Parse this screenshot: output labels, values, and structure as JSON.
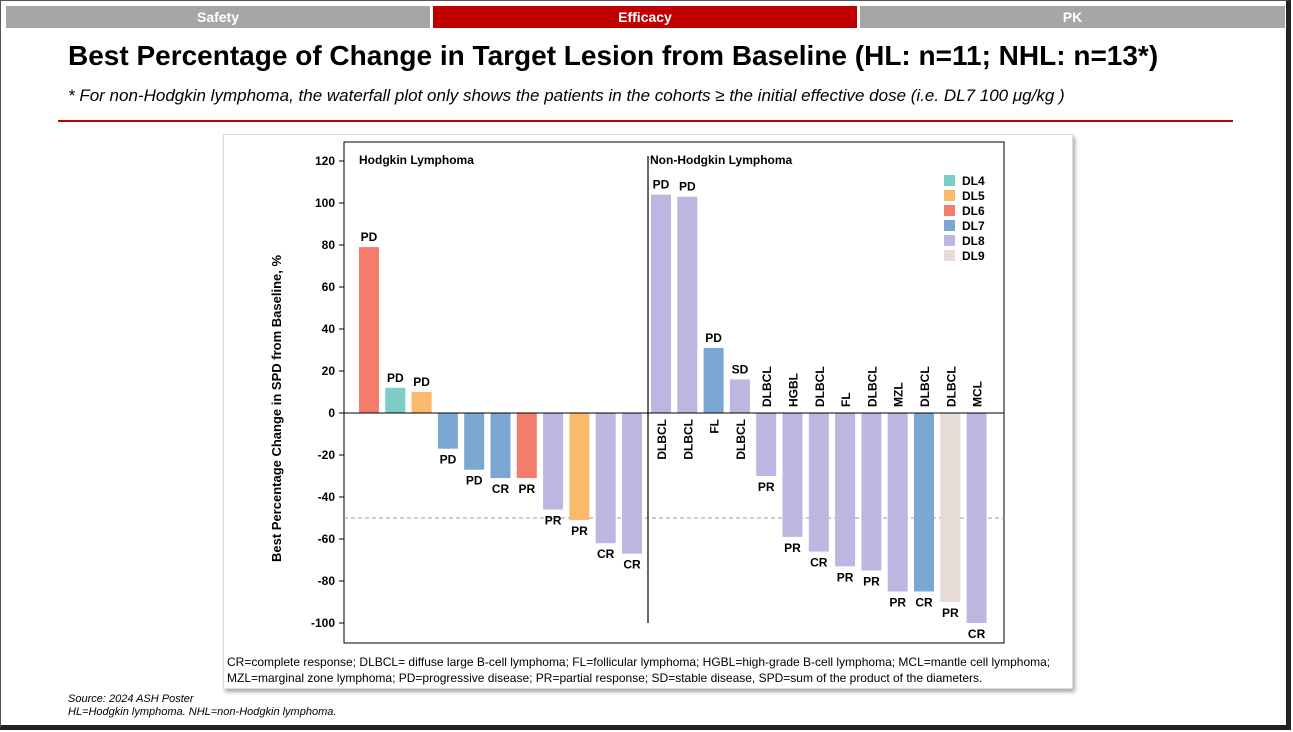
{
  "tabs": [
    {
      "label": "Safety",
      "active": false
    },
    {
      "label": "Efficacy",
      "active": true
    },
    {
      "label": "PK",
      "active": false
    }
  ],
  "title": "Best Percentage of Change in Target Lesion from Baseline (HL: n=11; NHL: n=13*)",
  "subtitle": "* For non-Hodgkin lymphoma, the waterfall plot only shows the patients in the cohorts ≥ the initial effective dose (i.e. DL7 100 μg/kg )",
  "footnote_lines": [
    "CR=complete response; DLBCL= diffuse large B-cell lymphoma; FL=follicular lymphoma; HGBL=high-grade B-cell lymphoma; MCL=mantle cell lymphoma;",
    "MZL=marginal zone lymphoma; PD=progressive disease; PR=partial response; SD=stable disease, SPD=sum of the product of the diameters."
  ],
  "source_lines": [
    "Source: 2024 ASH Poster",
    "HL=Hodgkin lymphoma. NHL=non-Hodgkin lymphoma."
  ],
  "colors": {
    "accent": "#c00000",
    "DL4": "#7ccdc6",
    "DL5": "#fbb96c",
    "DL6": "#f47c6c",
    "DL7": "#7aa8d2",
    "DL8": "#bcb6e0",
    "DL9": "#e8dcd6"
  },
  "chart_data": {
    "type": "bar",
    "ylabel": "Best Percentage Change in SPD from Baseline, %",
    "ylim": [
      -105,
      125
    ],
    "yticks": [
      120,
      100,
      80,
      60,
      40,
      20,
      0,
      -20,
      -40,
      -60,
      -80,
      -100
    ],
    "reference_line": -50,
    "legend": [
      "DL4",
      "DL5",
      "DL6",
      "DL7",
      "DL8",
      "DL9"
    ],
    "legend_position": "top-right",
    "groups": [
      {
        "name": "Hodgkin Lymphoma",
        "bars": [
          {
            "value": 79,
            "dose": "DL6",
            "response": "PD",
            "histology": ""
          },
          {
            "value": 12,
            "dose": "DL4",
            "response": "PD",
            "histology": ""
          },
          {
            "value": 10,
            "dose": "DL5",
            "response": "PD",
            "histology": ""
          },
          {
            "value": -17,
            "dose": "DL7",
            "response": "PD",
            "histology": ""
          },
          {
            "value": -27,
            "dose": "DL7",
            "response": "PD",
            "histology": ""
          },
          {
            "value": -31,
            "dose": "DL7",
            "response": "CR",
            "histology": ""
          },
          {
            "value": -31,
            "dose": "DL6",
            "response": "PR",
            "histology": ""
          },
          {
            "value": -46,
            "dose": "DL8",
            "response": "PR",
            "histology": ""
          },
          {
            "value": -51,
            "dose": "DL5",
            "response": "PR",
            "histology": ""
          },
          {
            "value": -62,
            "dose": "DL8",
            "response": "CR",
            "histology": ""
          },
          {
            "value": -67,
            "dose": "DL8",
            "response": "CR",
            "histology": ""
          }
        ]
      },
      {
        "name": "Non-Hodgkin Lymphoma",
        "bars": [
          {
            "value": 104,
            "dose": "DL8",
            "response": "PD",
            "histology": "DLBCL"
          },
          {
            "value": 103,
            "dose": "DL8",
            "response": "PD",
            "histology": "DLBCL"
          },
          {
            "value": 31,
            "dose": "DL7",
            "response": "PD",
            "histology": "FL"
          },
          {
            "value": 16,
            "dose": "DL8",
            "response": "SD",
            "histology": "DLBCL"
          },
          {
            "value": -30,
            "dose": "DL8",
            "response": "PR",
            "histology": "DLBCL"
          },
          {
            "value": -59,
            "dose": "DL8",
            "response": "PR",
            "histology": "HGBL"
          },
          {
            "value": -66,
            "dose": "DL8",
            "response": "CR",
            "histology": "DLBCL"
          },
          {
            "value": -73,
            "dose": "DL8",
            "response": "PR",
            "histology": "FL"
          },
          {
            "value": -75,
            "dose": "DL8",
            "response": "PR",
            "histology": "DLBCL"
          },
          {
            "value": -85,
            "dose": "DL8",
            "response": "PR",
            "histology": "MZL"
          },
          {
            "value": -85,
            "dose": "DL7",
            "response": "CR",
            "histology": "DLBCL"
          },
          {
            "value": -90,
            "dose": "DL9",
            "response": "PR",
            "histology": "DLBCL"
          },
          {
            "value": -100,
            "dose": "DL8",
            "response": "CR",
            "histology": "MCL"
          }
        ]
      }
    ]
  }
}
